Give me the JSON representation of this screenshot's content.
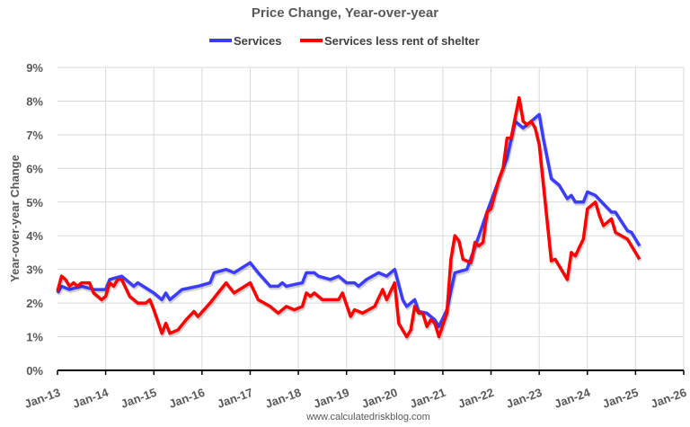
{
  "chart_data": {
    "type": "line",
    "title": "Price Change, Year-over-year",
    "xlabel": "",
    "ylabel": "Year-over-year Change",
    "ylim": [
      0,
      9
    ],
    "xlim": [
      "2013-01",
      "2026-01"
    ],
    "y_ticks": [
      "0%",
      "1%",
      "2%",
      "3%",
      "4%",
      "5%",
      "6%",
      "7%",
      "8%",
      "9%"
    ],
    "x_ticks": [
      "Jan-13",
      "Jan-14",
      "Jan-15",
      "Jan-16",
      "Jan-17",
      "Jan-18",
      "Jan-19",
      "Jan-20",
      "Jan-21",
      "Jan-22",
      "Jan-23",
      "Jan-24",
      "Jan-25",
      "Jan-26"
    ],
    "grid": true,
    "legend_position": "top-center",
    "footer": "www.calculatedriskblog.com",
    "series": [
      {
        "name": "Services",
        "color": "#3c3cff",
        "points": [
          [
            "2013-01",
            2.3
          ],
          [
            "2013-02",
            2.5
          ],
          [
            "2013-04",
            2.4
          ],
          [
            "2013-07",
            2.5
          ],
          [
            "2013-10",
            2.4
          ],
          [
            "2014-01",
            2.4
          ],
          [
            "2014-02",
            2.7
          ],
          [
            "2014-05",
            2.8
          ],
          [
            "2014-08",
            2.5
          ],
          [
            "2014-09",
            2.6
          ],
          [
            "2015-01",
            2.3
          ],
          [
            "2015-03",
            2.1
          ],
          [
            "2015-04",
            2.3
          ],
          [
            "2015-05",
            2.1
          ],
          [
            "2015-08",
            2.4
          ],
          [
            "2015-12",
            2.5
          ],
          [
            "2016-03",
            2.6
          ],
          [
            "2016-04",
            2.9
          ],
          [
            "2016-07",
            3.0
          ],
          [
            "2016-09",
            2.9
          ],
          [
            "2017-01",
            3.2
          ],
          [
            "2017-03",
            2.9
          ],
          [
            "2017-06",
            2.5
          ],
          [
            "2017-08",
            2.5
          ],
          [
            "2017-09",
            2.6
          ],
          [
            "2017-10",
            2.5
          ],
          [
            "2018-02",
            2.6
          ],
          [
            "2018-03",
            2.9
          ],
          [
            "2018-05",
            2.9
          ],
          [
            "2018-06",
            2.8
          ],
          [
            "2018-09",
            2.7
          ],
          [
            "2018-11",
            2.8
          ],
          [
            "2019-01",
            2.6
          ],
          [
            "2019-03",
            2.6
          ],
          [
            "2019-04",
            2.5
          ],
          [
            "2019-06",
            2.7
          ],
          [
            "2019-09",
            2.9
          ],
          [
            "2019-11",
            2.8
          ],
          [
            "2020-01",
            3.0
          ],
          [
            "2020-03",
            2.1
          ],
          [
            "2020-04",
            1.9
          ],
          [
            "2020-06",
            2.1
          ],
          [
            "2020-07",
            1.75
          ],
          [
            "2020-09",
            1.7
          ],
          [
            "2020-11",
            1.5
          ],
          [
            "2020-12",
            1.3
          ],
          [
            "2021-02",
            1.8
          ],
          [
            "2021-04",
            2.9
          ],
          [
            "2021-07",
            3.0
          ],
          [
            "2021-10",
            4.0
          ],
          [
            "2021-12",
            4.7
          ],
          [
            "2022-04",
            6.0
          ],
          [
            "2022-05",
            6.3
          ],
          [
            "2022-07",
            7.4
          ],
          [
            "2022-09",
            7.2
          ],
          [
            "2022-10",
            7.3
          ],
          [
            "2023-01",
            7.6
          ],
          [
            "2023-02",
            6.9
          ],
          [
            "2023-04",
            5.7
          ],
          [
            "2023-06",
            5.5
          ],
          [
            "2023-08",
            5.1
          ],
          [
            "2023-09",
            5.2
          ],
          [
            "2023-10",
            5.0
          ],
          [
            "2023-12",
            5.0
          ],
          [
            "2024-01",
            5.3
          ],
          [
            "2024-03",
            5.2
          ],
          [
            "2024-07",
            4.7
          ],
          [
            "2024-08",
            4.7
          ],
          [
            "2024-11",
            4.15
          ],
          [
            "2024-12",
            4.1
          ],
          [
            "2025-02",
            3.7
          ]
        ]
      },
      {
        "name": "Services less rent of shelter",
        "color": "#ff0000",
        "points": [
          [
            "2013-01",
            2.35
          ],
          [
            "2013-02",
            2.8
          ],
          [
            "2013-03",
            2.7
          ],
          [
            "2013-04",
            2.5
          ],
          [
            "2013-05",
            2.6
          ],
          [
            "2013-06",
            2.5
          ],
          [
            "2013-07",
            2.6
          ],
          [
            "2013-09",
            2.6
          ],
          [
            "2013-10",
            2.3
          ],
          [
            "2013-12",
            2.1
          ],
          [
            "2014-01",
            2.2
          ],
          [
            "2014-02",
            2.6
          ],
          [
            "2014-03",
            2.5
          ],
          [
            "2014-04",
            2.7
          ],
          [
            "2014-05",
            2.7
          ],
          [
            "2014-07",
            2.2
          ],
          [
            "2014-09",
            2.0
          ],
          [
            "2014-11",
            2.0
          ],
          [
            "2014-12",
            2.1
          ],
          [
            "2015-01",
            1.8
          ],
          [
            "2015-03",
            1.1
          ],
          [
            "2015-04",
            1.4
          ],
          [
            "2015-05",
            1.1
          ],
          [
            "2015-07",
            1.2
          ],
          [
            "2015-09",
            1.5
          ],
          [
            "2015-11",
            1.75
          ],
          [
            "2015-12",
            1.6
          ],
          [
            "2016-03",
            2.0
          ],
          [
            "2016-05",
            2.3
          ],
          [
            "2016-07",
            2.6
          ],
          [
            "2016-09",
            2.3
          ],
          [
            "2017-01",
            2.6
          ],
          [
            "2017-03",
            2.1
          ],
          [
            "2017-06",
            1.9
          ],
          [
            "2017-08",
            1.7
          ],
          [
            "2017-10",
            1.9
          ],
          [
            "2017-12",
            1.8
          ],
          [
            "2018-02",
            1.9
          ],
          [
            "2018-03",
            2.3
          ],
          [
            "2018-04",
            2.2
          ],
          [
            "2018-05",
            2.3
          ],
          [
            "2018-07",
            2.1
          ],
          [
            "2018-11",
            2.1
          ],
          [
            "2018-12",
            2.3
          ],
          [
            "2019-02",
            1.6
          ],
          [
            "2019-03",
            1.8
          ],
          [
            "2019-05",
            1.7
          ],
          [
            "2019-08",
            1.9
          ],
          [
            "2019-10",
            2.4
          ],
          [
            "2019-11",
            2.1
          ],
          [
            "2020-01",
            2.6
          ],
          [
            "2020-02",
            1.4
          ],
          [
            "2020-04",
            1.0
          ],
          [
            "2020-05",
            1.2
          ],
          [
            "2020-06",
            1.9
          ],
          [
            "2020-07",
            1.7
          ],
          [
            "2020-08",
            1.7
          ],
          [
            "2020-09",
            1.3
          ],
          [
            "2020-10",
            1.5
          ],
          [
            "2020-11",
            1.4
          ],
          [
            "2020-12",
            1.0
          ],
          [
            "2021-02",
            1.7
          ],
          [
            "2021-03",
            3.3
          ],
          [
            "2021-04",
            4.0
          ],
          [
            "2021-05",
            3.85
          ],
          [
            "2021-06",
            3.3
          ],
          [
            "2021-08",
            3.2
          ],
          [
            "2021-09",
            3.8
          ],
          [
            "2021-10",
            3.7
          ],
          [
            "2021-11",
            3.8
          ],
          [
            "2021-12",
            4.7
          ],
          [
            "2022-01",
            4.8
          ],
          [
            "2022-03",
            5.7
          ],
          [
            "2022-04",
            6.0
          ],
          [
            "2022-05",
            6.9
          ],
          [
            "2022-06",
            6.9
          ],
          [
            "2022-08",
            8.1
          ],
          [
            "2022-09",
            7.4
          ],
          [
            "2022-10",
            7.3
          ],
          [
            "2022-11",
            7.4
          ],
          [
            "2022-12",
            7.2
          ],
          [
            "2023-01",
            6.7
          ],
          [
            "2023-04",
            3.25
          ],
          [
            "2023-05",
            3.3
          ],
          [
            "2023-06",
            3.1
          ],
          [
            "2023-08",
            2.7
          ],
          [
            "2023-09",
            3.5
          ],
          [
            "2023-10",
            3.4
          ],
          [
            "2023-11",
            3.65
          ],
          [
            "2023-12",
            3.9
          ],
          [
            "2024-01",
            4.8
          ],
          [
            "2024-03",
            5.0
          ],
          [
            "2024-04",
            4.6
          ],
          [
            "2024-05",
            4.3
          ],
          [
            "2024-07",
            4.5
          ],
          [
            "2024-08",
            4.1
          ],
          [
            "2024-11",
            3.9
          ],
          [
            "2025-02",
            3.3
          ]
        ]
      }
    ]
  }
}
